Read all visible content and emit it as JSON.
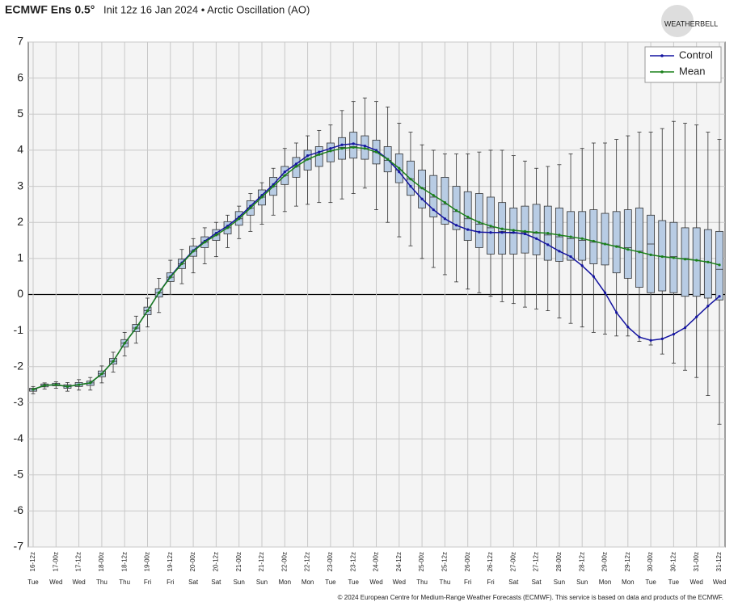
{
  "chart_data": {
    "type": "boxplot-line",
    "title": "ECMWF Ens 0.5°",
    "subtitle": "Init 12z 16 Jan 2024 • Arctic Oscillation (AO)",
    "credit": "© 2024 European Centre for Medium-Range Weather Forecasts (ECMWF). This service is based on data and products of the ECMWF.",
    "logo": "WEATHERBELL",
    "categories": [
      "16-12z",
      null,
      "17-00z",
      null,
      "17-12z",
      null,
      "18-00z",
      null,
      "18-12z",
      null,
      "19-00z",
      null,
      "19-12z",
      null,
      "20-00z",
      null,
      "20-12z",
      null,
      "21-00z",
      null,
      "21-12z",
      null,
      "22-00z",
      null,
      "22-12z",
      null,
      "23-00z",
      null,
      "23-12z",
      null,
      "24-00z",
      null,
      "24-12z",
      null,
      "25-00z",
      null,
      "25-12z",
      null,
      "26-00z",
      null,
      "26-12z",
      null,
      "27-00z",
      null,
      "27-12z",
      null,
      "28-00z",
      null,
      "28-12z",
      null,
      "29-00z",
      null,
      "29-12z",
      null,
      "30-00z",
      null,
      "30-12z",
      null,
      "31-00z",
      null,
      "31-12z"
    ],
    "days": [
      "Tue",
      null,
      "Wed",
      null,
      "Wed",
      null,
      "Thu",
      null,
      "Thu",
      null,
      "Fri",
      null,
      "Fri",
      null,
      "Sat",
      null,
      "Sat",
      null,
      "Sun",
      null,
      "Sun",
      null,
      "Mon",
      null,
      "Mon",
      null,
      "Tue",
      null,
      "Tue",
      null,
      "Wed",
      null,
      "Wed",
      null,
      "Thu",
      null,
      "Thu",
      null,
      "Fri",
      null,
      "Fri",
      null,
      "Sat",
      null,
      "Sat",
      null,
      "Sun",
      null,
      "Sun",
      null,
      "Mon",
      null,
      "Mon",
      null,
      "Tue",
      null,
      "Tue",
      null,
      "Wed",
      null,
      "Wed"
    ],
    "ylim": [
      -7,
      7
    ],
    "yticks": [
      -7,
      -6,
      -5,
      -4,
      -3,
      -2,
      -1,
      0,
      1,
      2,
      3,
      4,
      5,
      6,
      7
    ],
    "grid": true,
    "legend": "upper-right",
    "series": [
      {
        "name": "Control",
        "color": "#1414a0",
        "values": [
          -2.63,
          -2.52,
          -2.5,
          -2.55,
          -2.5,
          -2.45,
          -2.2,
          -1.85,
          -1.35,
          -0.93,
          -0.45,
          0.05,
          0.5,
          0.88,
          1.22,
          1.48,
          1.7,
          1.9,
          2.15,
          2.45,
          2.75,
          3.05,
          3.4,
          3.62,
          3.85,
          3.95,
          4.05,
          4.15,
          4.18,
          4.12,
          4.0,
          3.75,
          3.4,
          3.0,
          2.65,
          2.35,
          2.1,
          1.92,
          1.8,
          1.73,
          1.72,
          1.72,
          1.72,
          1.68,
          1.55,
          1.38,
          1.2,
          1.05,
          0.8,
          0.5,
          0.05,
          -0.5,
          -0.9,
          -1.18,
          -1.27,
          -1.23,
          -1.1,
          -0.92,
          -0.62,
          -0.32,
          -0.05
        ]
      },
      {
        "name": "Mean",
        "color": "#1a801a",
        "values": [
          -2.63,
          -2.52,
          -2.5,
          -2.55,
          -2.5,
          -2.45,
          -2.2,
          -1.85,
          -1.35,
          -0.93,
          -0.45,
          0.05,
          0.48,
          0.85,
          1.2,
          1.45,
          1.65,
          1.85,
          2.1,
          2.4,
          2.7,
          3.0,
          3.3,
          3.55,
          3.75,
          3.88,
          3.98,
          4.05,
          4.08,
          4.05,
          3.95,
          3.75,
          3.5,
          3.2,
          2.95,
          2.75,
          2.55,
          2.33,
          2.15,
          2.0,
          1.9,
          1.82,
          1.78,
          1.75,
          1.72,
          1.7,
          1.65,
          1.6,
          1.55,
          1.48,
          1.4,
          1.33,
          1.25,
          1.18,
          1.1,
          1.05,
          1.02,
          0.98,
          0.95,
          0.9,
          0.82
        ]
      }
    ],
    "boxes": {
      "color": "#b8cce4",
      "low": [
        -2.75,
        -2.62,
        -2.6,
        -2.68,
        -2.65,
        -2.65,
        -2.45,
        -2.15,
        -1.7,
        -1.35,
        -0.9,
        -0.5,
        0.0,
        0.3,
        0.6,
        0.85,
        1.05,
        1.3,
        1.55,
        1.75,
        1.95,
        2.2,
        2.3,
        2.45,
        2.5,
        2.55,
        2.55,
        2.65,
        2.8,
        2.95,
        2.35,
        2.0,
        1.6,
        1.35,
        1.0,
        0.75,
        0.55,
        0.35,
        0.15,
        0.05,
        -0.05,
        -0.2,
        -0.25,
        -0.35,
        -0.4,
        -0.45,
        -0.65,
        -0.8,
        -0.9,
        -1.05,
        -1.1,
        -1.15,
        -1.15,
        -1.3,
        -1.4,
        -1.65,
        -1.9,
        -2.1,
        -2.3,
        -2.8,
        -3.6
      ],
      "q1": [
        -2.68,
        -2.56,
        -2.53,
        -2.6,
        -2.55,
        -2.52,
        -2.28,
        -1.93,
        -1.45,
        -1.03,
        -0.56,
        -0.07,
        0.36,
        0.72,
        1.06,
        1.3,
        1.5,
        1.68,
        1.92,
        2.2,
        2.48,
        2.75,
        3.05,
        3.25,
        3.45,
        3.55,
        3.68,
        3.75,
        3.78,
        3.75,
        3.62,
        3.4,
        3.1,
        2.75,
        2.4,
        2.15,
        1.95,
        1.8,
        1.5,
        1.3,
        1.12,
        1.12,
        1.12,
        1.15,
        1.1,
        0.95,
        0.92,
        0.95,
        0.95,
        0.85,
        0.82,
        0.6,
        0.45,
        0.2,
        0.05,
        0.1,
        0.05,
        -0.05,
        -0.05,
        -0.1,
        -0.15
      ],
      "median": [
        -2.63,
        -2.52,
        -2.5,
        -2.55,
        -2.5,
        -2.45,
        -2.2,
        -1.85,
        -1.35,
        -0.93,
        -0.45,
        0.05,
        0.48,
        0.85,
        1.2,
        1.45,
        1.65,
        1.85,
        2.1,
        2.4,
        2.7,
        3.0,
        3.3,
        3.55,
        3.75,
        3.88,
        3.98,
        4.08,
        4.1,
        4.05,
        3.95,
        3.72,
        3.45,
        3.2,
        2.95,
        2.7,
        2.5,
        2.3,
        2.1,
        1.95,
        1.85,
        1.75,
        1.7,
        1.72,
        1.7,
        1.65,
        1.6,
        1.55,
        1.5,
        1.45,
        1.4,
        1.35,
        1.3,
        1.2,
        1.4,
        1.05,
        1.05,
        1.0,
        0.95,
        0.9,
        0.7
      ],
      "q3": [
        -2.6,
        -2.48,
        -2.46,
        -2.5,
        -2.44,
        -2.4,
        -2.12,
        -1.77,
        -1.25,
        -0.83,
        -0.35,
        0.16,
        0.6,
        0.98,
        1.34,
        1.6,
        1.8,
        2.02,
        2.3,
        2.6,
        2.9,
        3.25,
        3.55,
        3.8,
        4.0,
        4.1,
        4.2,
        4.35,
        4.5,
        4.4,
        4.28,
        4.1,
        3.9,
        3.7,
        3.45,
        3.3,
        3.25,
        3.0,
        2.85,
        2.8,
        2.7,
        2.55,
        2.4,
        2.45,
        2.5,
        2.45,
        2.4,
        2.3,
        2.3,
        2.35,
        2.25,
        2.3,
        2.35,
        2.4,
        2.2,
        2.05,
        2.0,
        1.85,
        1.85,
        1.8,
        1.75
      ],
      "high": [
        -2.55,
        -2.45,
        -2.42,
        -2.44,
        -2.36,
        -2.3,
        -1.98,
        -1.6,
        -1.05,
        -0.6,
        -0.1,
        0.45,
        0.95,
        1.25,
        1.55,
        1.85,
        2.0,
        2.2,
        2.45,
        2.8,
        3.1,
        3.5,
        4.05,
        4.2,
        4.4,
        4.55,
        4.7,
        5.1,
        5.35,
        5.45,
        5.35,
        5.2,
        4.75,
        4.5,
        4.15,
        4.0,
        3.9,
        3.9,
        3.9,
        3.95,
        4.0,
        4.0,
        3.85,
        3.7,
        3.5,
        3.55,
        3.6,
        3.9,
        4.05,
        4.2,
        4.2,
        4.3,
        4.4,
        4.5,
        4.5,
        4.6,
        4.8,
        4.75,
        4.7,
        4.5,
        4.3
      ]
    }
  }
}
